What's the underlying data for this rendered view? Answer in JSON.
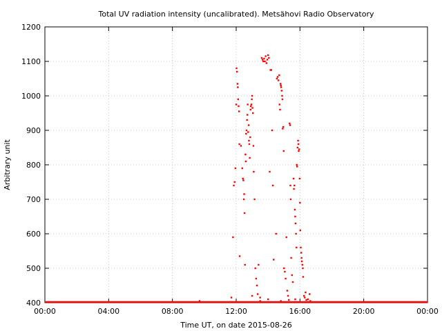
{
  "chart_data": {
    "type": "scatter",
    "title": "Total UV radiation intensity (uncalibrated). Metsähovi Radio Observatory",
    "xlabel": "Time UT, on date 2015-08-26",
    "ylabel": "Arbitrary unit",
    "xlim": [
      0,
      24
    ],
    "ylim": [
      400,
      1200
    ],
    "x_ticks": [
      0,
      4,
      8,
      12,
      16,
      20,
      24
    ],
    "x_tick_labels": [
      "00:00",
      "04:00",
      "08:00",
      "12:00",
      "16:00",
      "20:00",
      "00:00"
    ],
    "y_ticks": [
      400,
      500,
      600,
      700,
      800,
      900,
      1000,
      1100,
      1200
    ],
    "grid": true,
    "marker_color": "#ff0000",
    "baseline": {
      "value": 400,
      "x_range": [
        0,
        24
      ]
    },
    "series": [
      {
        "points": [
          [
            9.7,
            405
          ],
          [
            11.7,
            415
          ],
          [
            11.8,
            590
          ],
          [
            11.85,
            740
          ],
          [
            11.9,
            750
          ],
          [
            11.95,
            790
          ],
          [
            12.0,
            975
          ],
          [
            12.02,
            1080
          ],
          [
            12.05,
            1070
          ],
          [
            12.08,
            1035
          ],
          [
            12.1,
            1025
          ],
          [
            12.12,
            990
          ],
          [
            12.15,
            970
          ],
          [
            12.18,
            955
          ],
          [
            12.2,
            860
          ],
          [
            12.22,
            535
          ],
          [
            12.3,
            855
          ],
          [
            12.38,
            790
          ],
          [
            12.42,
            760
          ],
          [
            12.45,
            755
          ],
          [
            12.48,
            700
          ],
          [
            12.5,
            715
          ],
          [
            12.52,
            660
          ],
          [
            12.55,
            510
          ],
          [
            12.58,
            830
          ],
          [
            12.6,
            810
          ],
          [
            12.62,
            890
          ],
          [
            12.65,
            900
          ],
          [
            12.68,
            930
          ],
          [
            12.7,
            945
          ],
          [
            12.72,
            975
          ],
          [
            12.75,
            895
          ],
          [
            12.78,
            915
          ],
          [
            12.8,
            870
          ],
          [
            12.82,
            860
          ],
          [
            12.85,
            820
          ],
          [
            12.88,
            880
          ],
          [
            12.9,
            960
          ],
          [
            12.92,
            970
          ],
          [
            12.95,
            975
          ],
          [
            12.98,
            990
          ],
          [
            13.0,
            1000
          ],
          [
            13.02,
            965
          ],
          [
            13.05,
            950
          ],
          [
            13.08,
            855
          ],
          [
            13.1,
            780
          ],
          [
            13.15,
            700
          ],
          [
            13.2,
            500
          ],
          [
            13.25,
            470
          ],
          [
            13.3,
            450
          ],
          [
            13.35,
            425
          ],
          [
            13.4,
            510
          ],
          [
            13.5,
            415
          ],
          [
            13.6,
            1110
          ],
          [
            13.65,
            1105
          ],
          [
            13.7,
            1100
          ],
          [
            13.75,
            1108
          ],
          [
            13.8,
            1100
          ],
          [
            13.85,
            1115
          ],
          [
            13.9,
            1095
          ],
          [
            13.95,
            1105
          ],
          [
            14.0,
            1118
          ],
          [
            14.05,
            1110
          ],
          [
            14.1,
            780
          ],
          [
            14.15,
            1075
          ],
          [
            14.2,
            1075
          ],
          [
            14.25,
            900
          ],
          [
            14.3,
            740
          ],
          [
            14.35,
            525
          ],
          [
            14.5,
            600
          ],
          [
            14.55,
            1050
          ],
          [
            14.6,
            1055
          ],
          [
            14.65,
            1045
          ],
          [
            14.7,
            1060
          ],
          [
            14.72,
            975
          ],
          [
            14.75,
            960
          ],
          [
            14.78,
            1035
          ],
          [
            14.8,
            1030
          ],
          [
            14.82,
            1025
          ],
          [
            14.85,
            1015
          ],
          [
            14.88,
            1000
          ],
          [
            14.9,
            990
          ],
          [
            14.92,
            905
          ],
          [
            14.95,
            910
          ],
          [
            14.98,
            840
          ],
          [
            15.0,
            500
          ],
          [
            15.05,
            490
          ],
          [
            15.1,
            470
          ],
          [
            15.15,
            590
          ],
          [
            15.2,
            435
          ],
          [
            15.25,
            420
          ],
          [
            15.35,
            920
          ],
          [
            15.38,
            915
          ],
          [
            15.4,
            740
          ],
          [
            15.42,
            700
          ],
          [
            15.45,
            530
          ],
          [
            15.5,
            480
          ],
          [
            15.55,
            460
          ],
          [
            15.6,
            760
          ],
          [
            15.62,
            730
          ],
          [
            15.65,
            740
          ],
          [
            15.68,
            670
          ],
          [
            15.7,
            650
          ],
          [
            15.72,
            630
          ],
          [
            15.75,
            600
          ],
          [
            15.78,
            560
          ],
          [
            15.8,
            800
          ],
          [
            15.82,
            795
          ],
          [
            15.85,
            850
          ],
          [
            15.88,
            870
          ],
          [
            15.9,
            860
          ],
          [
            15.92,
            840
          ],
          [
            15.95,
            845
          ],
          [
            15.98,
            760
          ],
          [
            16.0,
            690
          ],
          [
            16.02,
            610
          ],
          [
            16.05,
            560
          ],
          [
            16.08,
            545
          ],
          [
            16.1,
            530
          ],
          [
            16.12,
            520
          ],
          [
            16.15,
            510
          ],
          [
            16.18,
            500
          ],
          [
            16.2,
            475
          ],
          [
            16.25,
            420
          ],
          [
            16.3,
            415
          ],
          [
            16.35,
            430
          ],
          [
            16.5,
            410
          ],
          [
            16.6,
            425
          ],
          [
            16.65,
            405
          ],
          [
            13.0,
            420
          ],
          [
            13.5,
            405
          ],
          [
            14.0,
            410
          ],
          [
            14.8,
            405
          ],
          [
            15.3,
            408
          ],
          [
            15.7,
            410
          ],
          [
            16.4,
            408
          ]
        ]
      }
    ]
  }
}
